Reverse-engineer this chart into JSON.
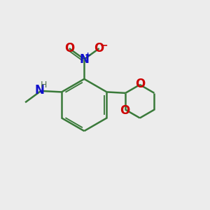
{
  "bg_color": "#ececec",
  "bond_color": "#3a7a3a",
  "bond_width": 1.8,
  "N_color": "#1010cc",
  "O_color": "#cc0000",
  "H_color": "#507050",
  "figsize": [
    3.0,
    3.0
  ],
  "dpi": 100,
  "xlim": [
    0,
    10
  ],
  "ylim": [
    0,
    10
  ]
}
